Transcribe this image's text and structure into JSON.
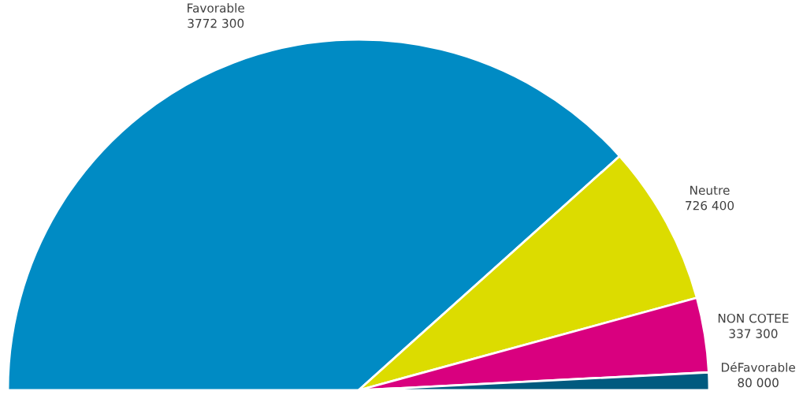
{
  "chart_data": {
    "type": "pie",
    "categories": [
      "Favorable",
      "Neutre",
      "NON COTEE",
      "DéFavorable"
    ],
    "values": [
      3772300,
      726400,
      337300,
      80000
    ],
    "value_labels": [
      "3772 300",
      "726 400",
      "337 300",
      "80 000"
    ],
    "colors": [
      "#008bc4",
      "#dcdc00",
      "#d9007f",
      "#005a7f"
    ]
  }
}
